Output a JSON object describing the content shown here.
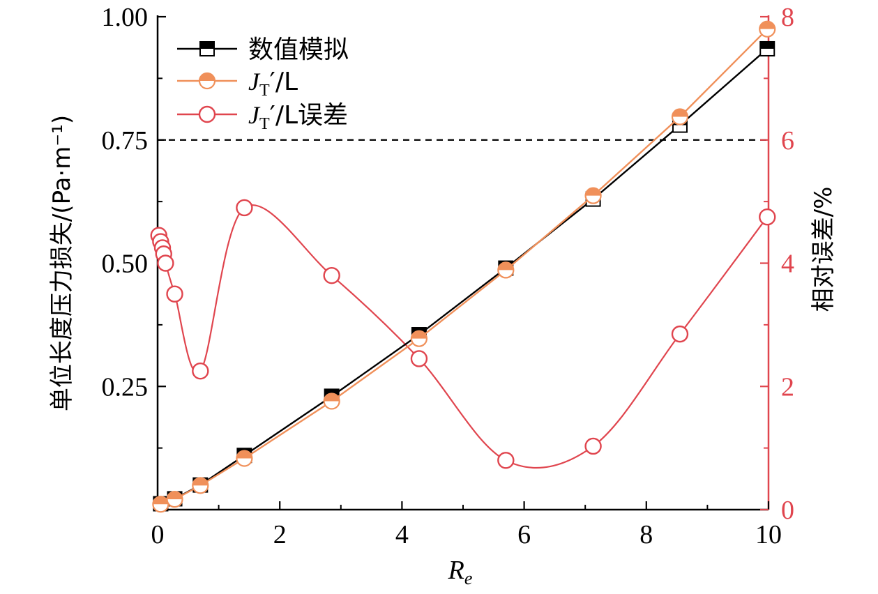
{
  "colors": {
    "black": "#000000",
    "orange": "#f0905a",
    "red": "#e0454e"
  },
  "legend": {
    "items": [
      {
        "label": "数值模拟",
        "marker": "square-half"
      },
      {
        "label_main": "J",
        "label_sub": "T",
        "label_rest": "′/L",
        "marker": "circle-half"
      },
      {
        "label_main": "J",
        "label_sub": "T",
        "label_rest": "′/L误差",
        "marker": "circle-open"
      }
    ]
  },
  "chart_data": {
    "type": "line",
    "xlabel_main": "R",
    "xlabel_sub": "e",
    "ylabel_left": "单位长度压力损失/(Pa·m⁻¹)",
    "ylabel_right": "相对误差/%",
    "xlim": [
      0,
      10
    ],
    "ylim_left": [
      0,
      1.0
    ],
    "ylim_right": [
      0,
      8
    ],
    "x_ticks": [
      "0",
      "2",
      "4",
      "6",
      "8",
      "10"
    ],
    "y_left_ticks": [
      "1.00",
      "0.75",
      "0.50",
      "0.25"
    ],
    "y_right_ticks": [
      "0",
      "2",
      "4",
      "6",
      "8"
    ],
    "reference_line": {
      "axis": "left",
      "y": 0.75,
      "style": "dashed"
    },
    "series": [
      {
        "name": "数值模拟",
        "axis": "left",
        "color": "black",
        "marker": "square-half",
        "x": [
          0.05,
          0.28,
          0.7,
          1.42,
          2.85,
          4.28,
          5.7,
          7.13,
          8.55,
          9.98
        ],
        "y": [
          0.012,
          0.022,
          0.05,
          0.11,
          0.23,
          0.355,
          0.49,
          0.63,
          0.78,
          0.935
        ]
      },
      {
        "name": "J_T′/L",
        "axis": "left",
        "color": "orange",
        "marker": "circle-half",
        "x": [
          0.05,
          0.28,
          0.7,
          1.42,
          2.85,
          4.28,
          5.7,
          7.13,
          8.55,
          9.98
        ],
        "y": [
          0.011,
          0.021,
          0.049,
          0.104,
          0.22,
          0.347,
          0.486,
          0.637,
          0.797,
          0.975
        ]
      },
      {
        "name": "J_T′/L误差",
        "axis": "right",
        "color": "red",
        "marker": "circle-open",
        "x": [
          0.02,
          0.05,
          0.08,
          0.1,
          0.13,
          0.28,
          0.7,
          1.42,
          2.85,
          4.28,
          5.7,
          7.13,
          8.55,
          9.98
        ],
        "y": [
          4.45,
          4.35,
          4.25,
          4.15,
          4.0,
          3.5,
          2.25,
          4.9,
          3.8,
          2.45,
          0.8,
          1.03,
          2.85,
          4.75
        ]
      }
    ]
  }
}
